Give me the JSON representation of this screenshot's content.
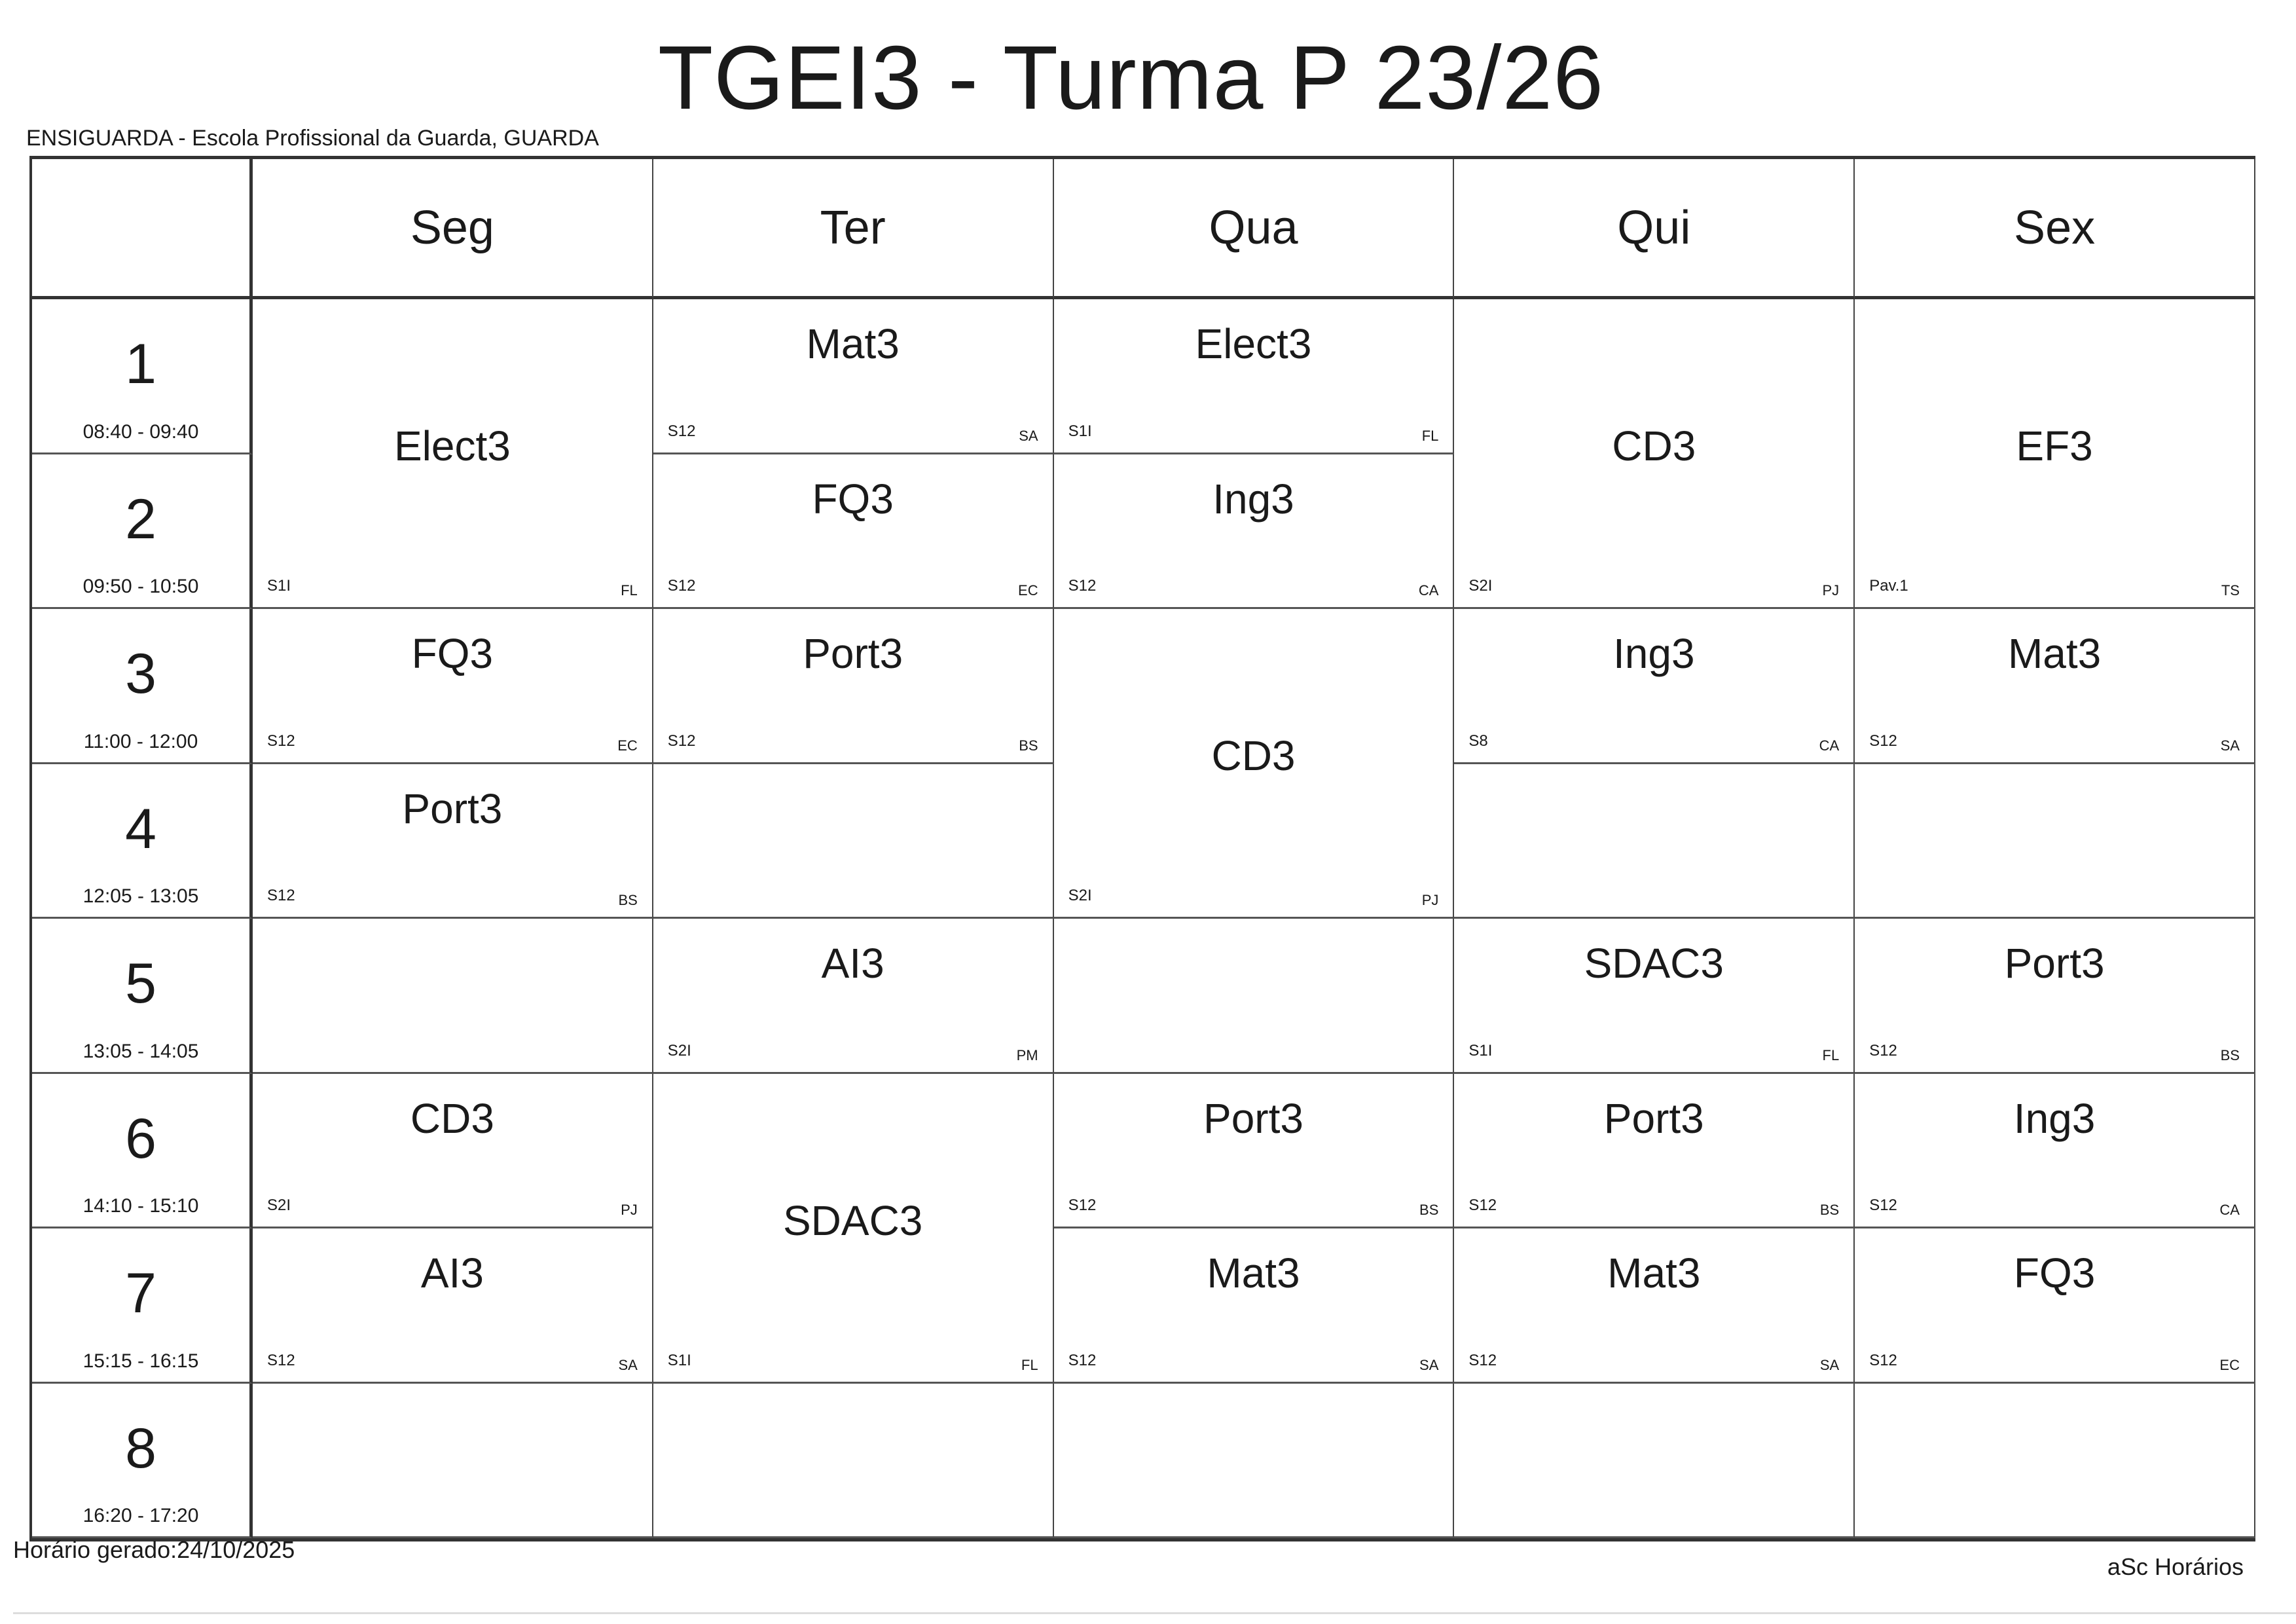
{
  "title": "TGEI3 - Turma P 23/26",
  "school": "ENSIGUARDA - Escola Profissional da Guarda, GUARDA",
  "days": [
    "Seg",
    "Ter",
    "Qua",
    "Qui",
    "Sex"
  ],
  "periods": [
    {
      "num": "1",
      "time": "08:40 - 09:40"
    },
    {
      "num": "2",
      "time": "09:50 - 10:50"
    },
    {
      "num": "3",
      "time": "11:00 - 12:00"
    },
    {
      "num": "4",
      "time": "12:05 - 13:05"
    },
    {
      "num": "5",
      "time": "13:05 - 14:05"
    },
    {
      "num": "6",
      "time": "14:10 - 15:10"
    },
    {
      "num": "7",
      "time": "15:15 - 16:15"
    },
    {
      "num": "8",
      "time": "16:20 - 17:20"
    }
  ],
  "lessons": [
    [
      {
        "start": 1,
        "span": 2,
        "subject": "Elect3",
        "room": "S1I",
        "teacher": "FL"
      },
      {
        "start": 3,
        "span": 1,
        "subject": "FQ3",
        "room": "S12",
        "teacher": "EC"
      },
      {
        "start": 4,
        "span": 1,
        "subject": "Port3",
        "room": "S12",
        "teacher": "BS"
      },
      {
        "start": 6,
        "span": 1,
        "subject": "CD3",
        "room": "S2I",
        "teacher": "PJ"
      },
      {
        "start": 7,
        "span": 1,
        "subject": "AI3",
        "room": "S12",
        "teacher": "SA"
      }
    ],
    [
      {
        "start": 1,
        "span": 1,
        "subject": "Mat3",
        "room": "S12",
        "teacher": "SA"
      },
      {
        "start": 2,
        "span": 1,
        "subject": "FQ3",
        "room": "S12",
        "teacher": "EC"
      },
      {
        "start": 3,
        "span": 1,
        "subject": "Port3",
        "room": "S12",
        "teacher": "BS"
      },
      {
        "start": 5,
        "span": 1,
        "subject": "AI3",
        "room": "S2I",
        "teacher": "PM"
      },
      {
        "start": 6,
        "span": 2,
        "subject": "SDAC3",
        "room": "S1I",
        "teacher": "FL"
      }
    ],
    [
      {
        "start": 1,
        "span": 1,
        "subject": "Elect3",
        "room": "S1I",
        "teacher": "FL"
      },
      {
        "start": 2,
        "span": 1,
        "subject": "Ing3",
        "room": "S12",
        "teacher": "CA"
      },
      {
        "start": 3,
        "span": 2,
        "subject": "CD3",
        "room": "S2I",
        "teacher": "PJ"
      },
      {
        "start": 6,
        "span": 1,
        "subject": "Port3",
        "room": "S12",
        "teacher": "BS"
      },
      {
        "start": 7,
        "span": 1,
        "subject": "Mat3",
        "room": "S12",
        "teacher": "SA"
      }
    ],
    [
      {
        "start": 1,
        "span": 2,
        "subject": "CD3",
        "room": "S2I",
        "teacher": "PJ"
      },
      {
        "start": 3,
        "span": 1,
        "subject": "Ing3",
        "room": "S8",
        "teacher": "CA"
      },
      {
        "start": 5,
        "span": 1,
        "subject": "SDAC3",
        "room": "S1I",
        "teacher": "FL"
      },
      {
        "start": 6,
        "span": 1,
        "subject": "Port3",
        "room": "S12",
        "teacher": "BS"
      },
      {
        "start": 7,
        "span": 1,
        "subject": "Mat3",
        "room": "S12",
        "teacher": "SA"
      }
    ],
    [
      {
        "start": 1,
        "span": 2,
        "subject": "EF3",
        "room": "Pav.1",
        "teacher": "TS"
      },
      {
        "start": 3,
        "span": 1,
        "subject": "Mat3",
        "room": "S12",
        "teacher": "SA"
      },
      {
        "start": 5,
        "span": 1,
        "subject": "Port3",
        "room": "S12",
        "teacher": "BS"
      },
      {
        "start": 6,
        "span": 1,
        "subject": "Ing3",
        "room": "S12",
        "teacher": "CA"
      },
      {
        "start": 7,
        "span": 1,
        "subject": "FQ3",
        "room": "S12",
        "teacher": "EC"
      }
    ]
  ],
  "footer": {
    "generated": "Horário gerado:24/10/2025",
    "brand": "aSc Horários"
  }
}
